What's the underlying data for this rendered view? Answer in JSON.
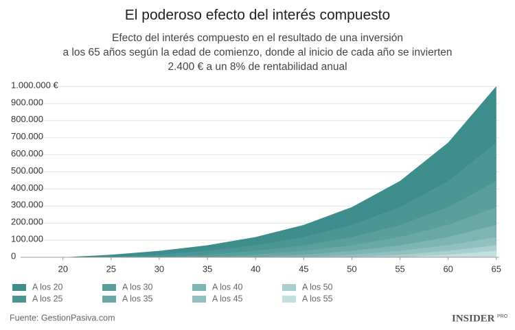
{
  "chart_data": {
    "type": "area",
    "title": "El poderoso efecto del interés compuesto",
    "subtitle": [
      "Efecto del interés compuesto en el resultado de una inversión",
      "a los 65 años según la edad de comienzo, donde al inicio de cada año se invierten",
      "2.400 € a un 8% de rentabilidad anual"
    ],
    "x": [
      20,
      25,
      30,
      35,
      40,
      45,
      50,
      55,
      60,
      65
    ],
    "series": [
      {
        "name": "A los 20",
        "color": "#3d8d8d",
        "values": [
          0,
          15206,
          37549,
          70378,
          118615,
          189491,
          293630,
          446645,
          671474,
          1001823
        ]
      },
      {
        "name": "A los 25",
        "color": "#4a9595",
        "values": [
          null,
          0,
          15206,
          37549,
          70378,
          118615,
          189491,
          293630,
          446645,
          671474
        ]
      },
      {
        "name": "A los 30",
        "color": "#5a9e9e",
        "values": [
          null,
          null,
          0,
          15206,
          37549,
          70378,
          118615,
          189491,
          293630,
          446645
        ]
      },
      {
        "name": "A los 35",
        "color": "#6aa8a8",
        "values": [
          null,
          null,
          null,
          0,
          15206,
          37549,
          70378,
          118615,
          189491,
          293630
        ]
      },
      {
        "name": "A los 40",
        "color": "#7db4b4",
        "values": [
          null,
          null,
          null,
          null,
          0,
          15206,
          37549,
          70378,
          118615,
          189491
        ]
      },
      {
        "name": "A los 45",
        "color": "#92c0c0",
        "values": [
          null,
          null,
          null,
          null,
          null,
          0,
          15206,
          37549,
          70378,
          118615
        ]
      },
      {
        "name": "A los 50",
        "color": "#a9cfcf",
        "values": [
          null,
          null,
          null,
          null,
          null,
          null,
          0,
          15206,
          37549,
          70378
        ]
      },
      {
        "name": "A los 55",
        "color": "#c4dfdf",
        "values": [
          null,
          null,
          null,
          null,
          null,
          null,
          null,
          0,
          15206,
          37549
        ]
      }
    ],
    "xlim": [
      15.6,
      65.3
    ],
    "xticks": [
      20,
      25,
      30,
      35,
      40,
      45,
      50,
      55,
      60,
      65
    ],
    "ylim": [
      0,
      1000000
    ],
    "yticks": [
      {
        "value": 0,
        "label": "0"
      },
      {
        "value": 100000,
        "label": "100.000"
      },
      {
        "value": 200000,
        "label": "200.000"
      },
      {
        "value": 300000,
        "label": "300.000"
      },
      {
        "value": 400000,
        "label": "400.000"
      },
      {
        "value": 500000,
        "label": "500.000"
      },
      {
        "value": 600000,
        "label": "600.000"
      },
      {
        "value": 700000,
        "label": "700.000"
      },
      {
        "value": 800000,
        "label": "800.000"
      },
      {
        "value": 900000,
        "label": "900.000"
      },
      {
        "value": 1000000,
        "label": "1.000.000 €"
      }
    ],
    "grid": true,
    "source": "Fuente: GestionPasiva.com",
    "brand": [
      "INSIDER",
      "PRO"
    ]
  }
}
